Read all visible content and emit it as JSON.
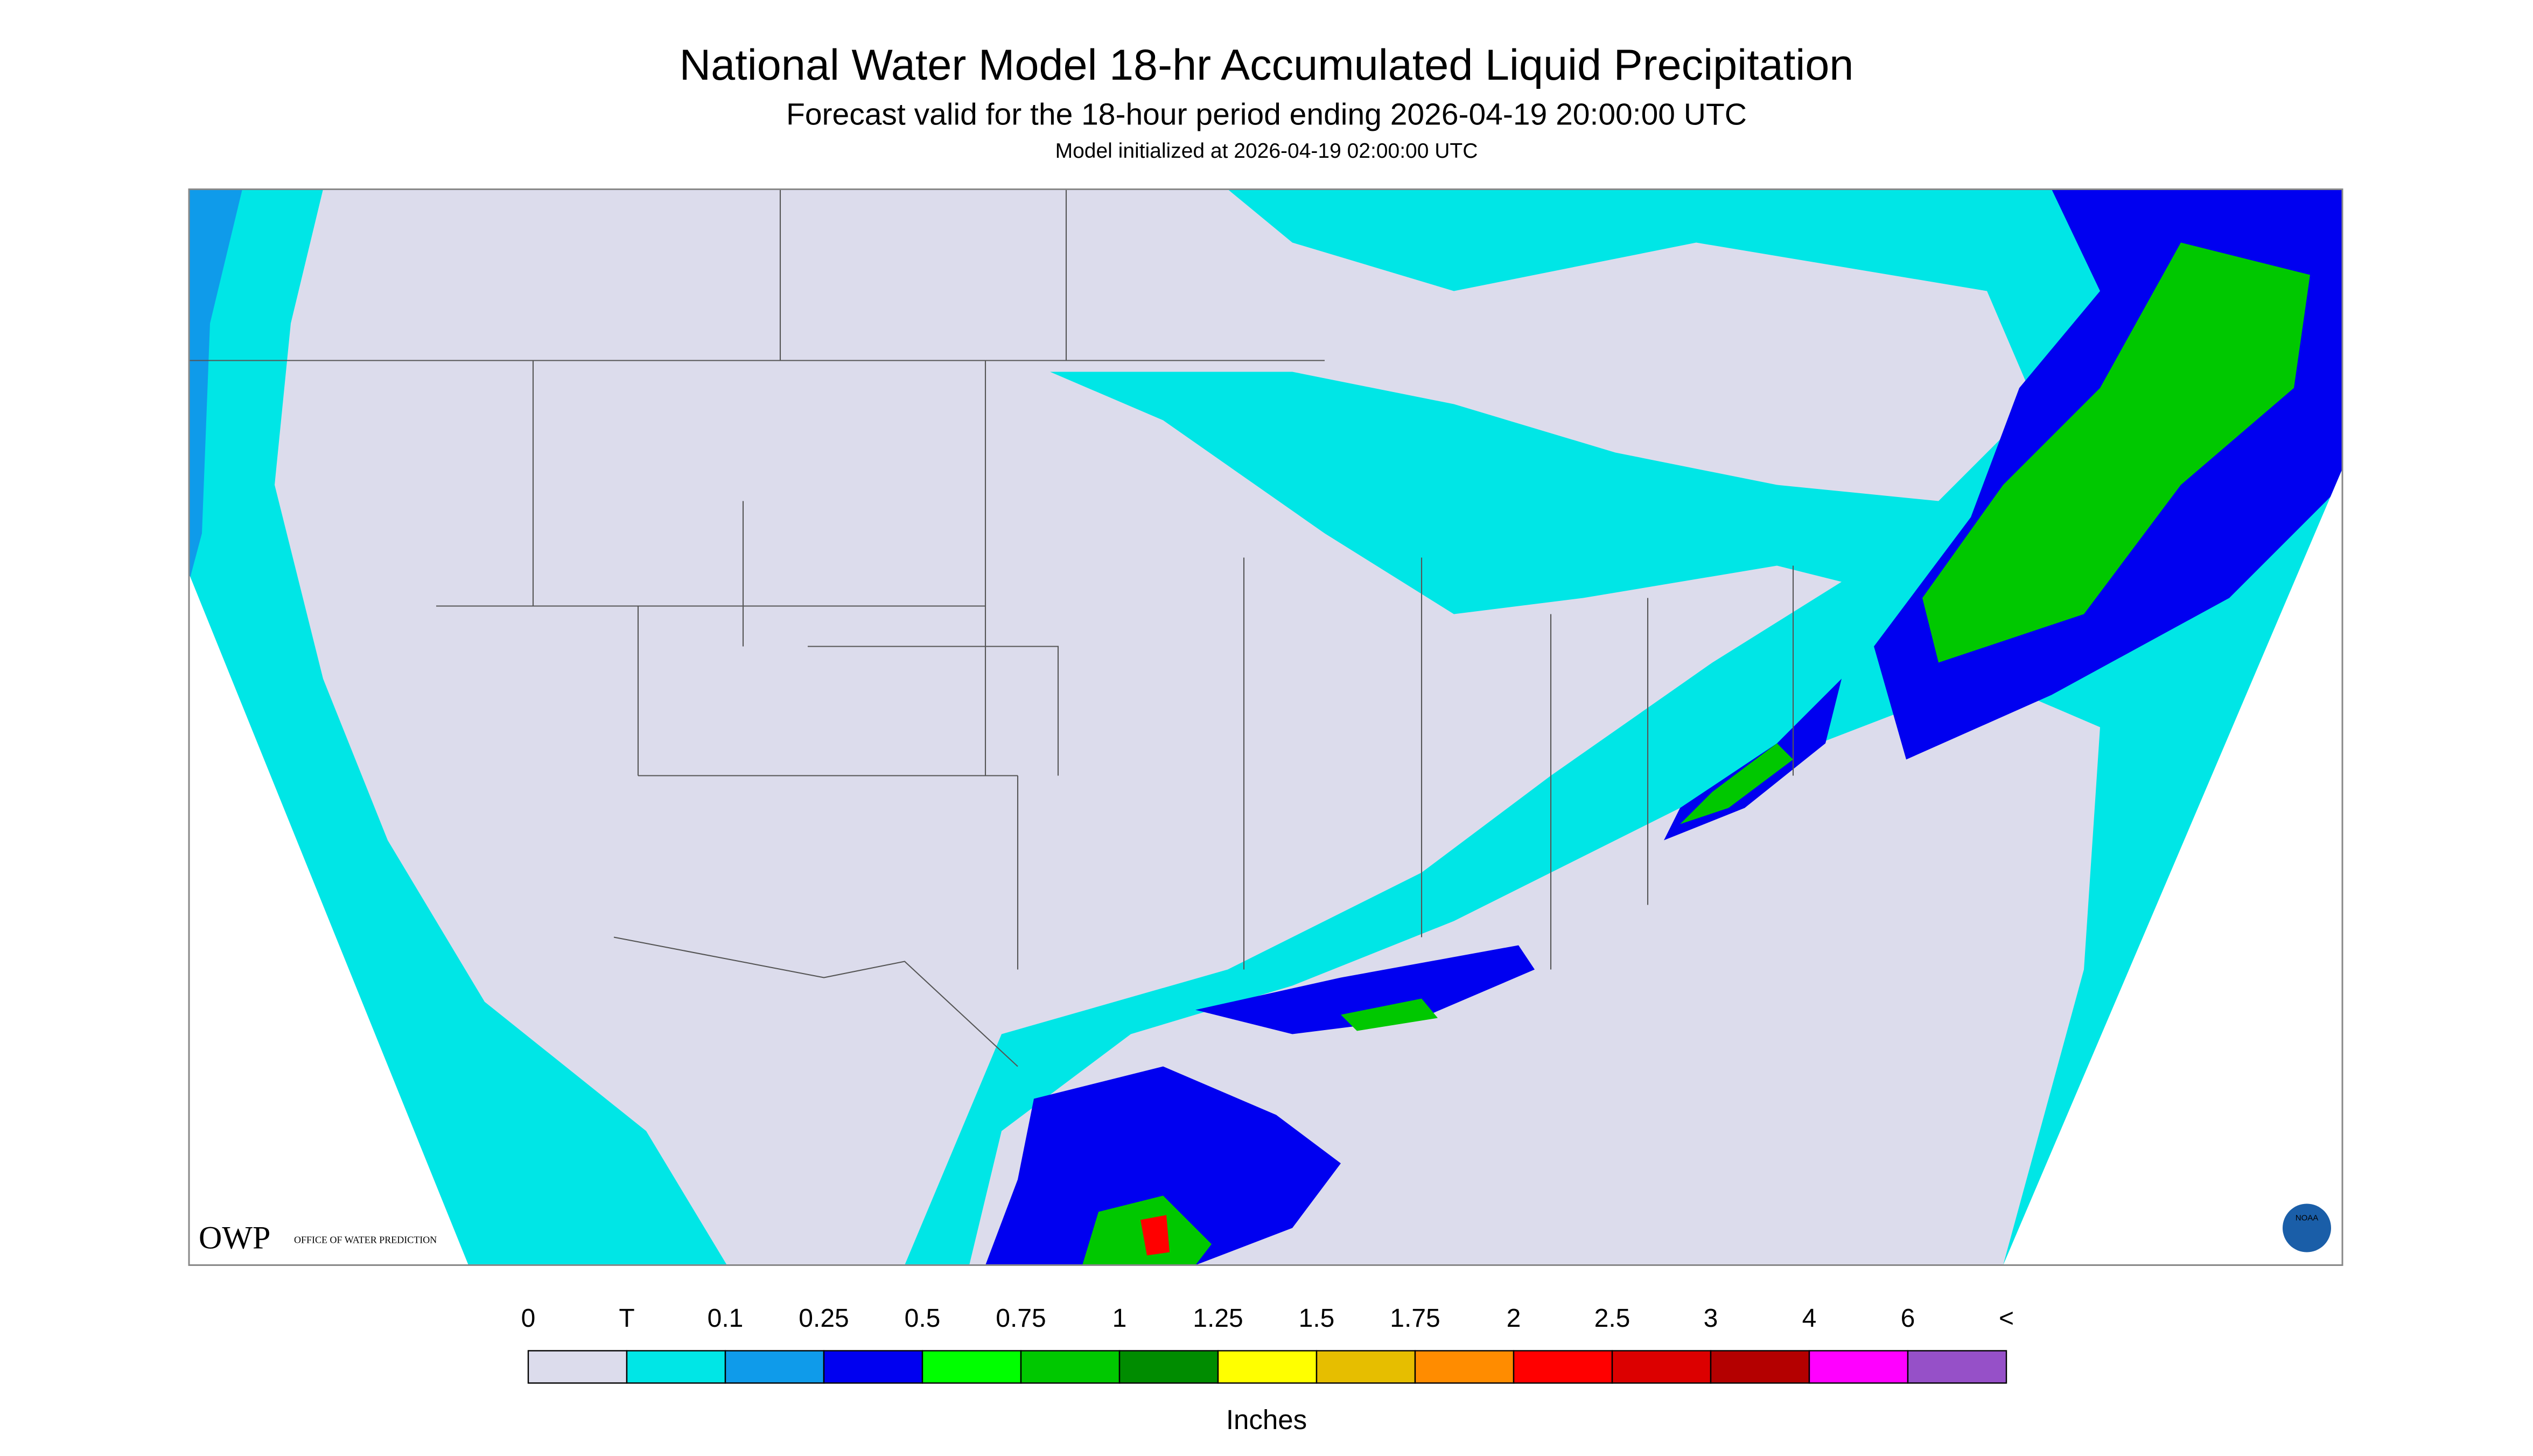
{
  "header": {
    "title": "National Water Model 18-hr Accumulated Liquid Precipitation",
    "subtitle": "Forecast valid for the 18-hour period ending 2026-04-19 20:00:00 UTC",
    "note": "Model initialized at 2026-04-19 02:00:00 UTC"
  },
  "legend": {
    "labels": [
      "0",
      "T",
      "0.1",
      "0.25",
      "0.5",
      "0.75",
      "1",
      "1.25",
      "1.5",
      "1.75",
      "2",
      "2.5",
      "3",
      "4",
      "6",
      "<"
    ],
    "colors": [
      "#dcdcec",
      "#00e6e6",
      "#0f9bea",
      "#0000f0",
      "#00ff00",
      "#00c800",
      "#008c00",
      "#ffff00",
      "#e6be00",
      "#ff8c00",
      "#ff0000",
      "#dc0000",
      "#b40000",
      "#ff00ff",
      "#9650c8"
    ],
    "units": "Inches"
  },
  "logos": {
    "owp": "OWP",
    "owp_text": "OFFICE OF WATER PREDICTION",
    "noaa": "NOAA"
  }
}
